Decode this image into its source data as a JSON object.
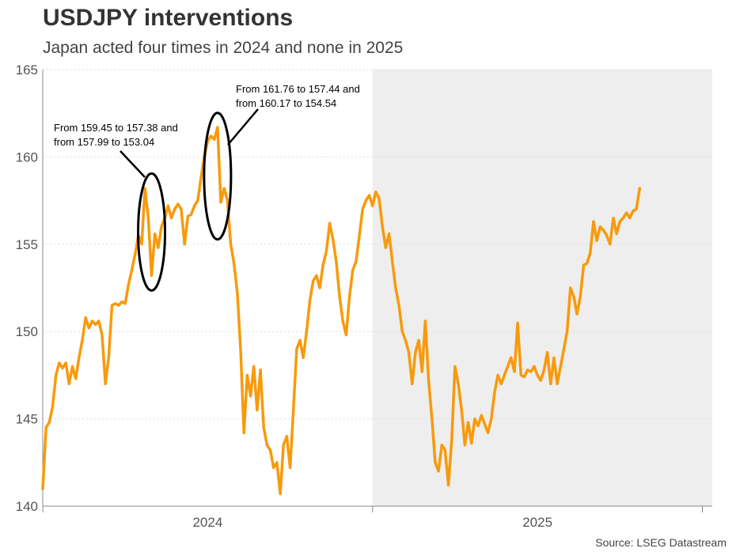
{
  "title": "USDJPY interventions",
  "subtitle": "Japan acted four times in 2024 and none in 2025",
  "source": "Source: LSEG Datastream",
  "colors": {
    "line": "#f89a0c",
    "shade": "#eeeeee",
    "grid": "#dddddd",
    "axis": "#888888"
  },
  "chart_data": {
    "type": "line",
    "title": "USDJPY interventions",
    "subtitle": "Japan acted four times in 2024 and none in 2025",
    "xlabel": "",
    "ylabel": "",
    "xlim": [
      2024.0,
      2026.03
    ],
    "ylim": [
      140,
      165
    ],
    "yticks": [
      140,
      145,
      150,
      155,
      160,
      165
    ],
    "ytick_labels": [
      "140",
      "145",
      "150",
      "155",
      "160",
      "165"
    ],
    "xticks": [
      {
        "label": "2024",
        "value": 2024.5
      },
      {
        "label": "2025",
        "value": 2025.5
      }
    ],
    "year_boundaries": [
      2025.0,
      2026.0
    ],
    "shaded_region": {
      "from": 2025.0,
      "to": 2026.03,
      "label": "2025"
    },
    "grid": "horizontal dotted",
    "series": [
      {
        "name": "USDJPY",
        "points": [
          [
            2024.0,
            141.0
          ],
          [
            2024.01,
            144.5
          ],
          [
            2024.02,
            144.8
          ],
          [
            2024.03,
            145.7
          ],
          [
            2024.04,
            147.5
          ],
          [
            2024.05,
            148.2
          ],
          [
            2024.06,
            147.9
          ],
          [
            2024.07,
            148.2
          ],
          [
            2024.08,
            147.0
          ],
          [
            2024.09,
            148.0
          ],
          [
            2024.1,
            147.3
          ],
          [
            2024.11,
            148.5
          ],
          [
            2024.12,
            149.5
          ],
          [
            2024.13,
            150.8
          ],
          [
            2024.14,
            150.2
          ],
          [
            2024.15,
            150.6
          ],
          [
            2024.16,
            150.4
          ],
          [
            2024.17,
            150.6
          ],
          [
            2024.18,
            149.8
          ],
          [
            2024.19,
            147.0
          ],
          [
            2024.2,
            148.5
          ],
          [
            2024.21,
            151.5
          ],
          [
            2024.22,
            151.6
          ],
          [
            2024.23,
            151.5
          ],
          [
            2024.24,
            151.7
          ],
          [
            2024.25,
            151.6
          ],
          [
            2024.26,
            152.7
          ],
          [
            2024.27,
            153.5
          ],
          [
            2024.28,
            154.4
          ],
          [
            2024.29,
            155.5
          ],
          [
            2024.3,
            155.0
          ],
          [
            2024.31,
            158.2
          ],
          [
            2024.32,
            156.5
          ],
          [
            2024.33,
            153.2
          ],
          [
            2024.34,
            155.6
          ],
          [
            2024.35,
            154.8
          ],
          [
            2024.36,
            156.0
          ],
          [
            2024.37,
            156.5
          ],
          [
            2024.38,
            157.2
          ],
          [
            2024.39,
            156.5
          ],
          [
            2024.4,
            157.0
          ],
          [
            2024.41,
            157.3
          ],
          [
            2024.42,
            157.0
          ],
          [
            2024.43,
            155.0
          ],
          [
            2024.44,
            156.6
          ],
          [
            2024.45,
            156.7
          ],
          [
            2024.46,
            157.2
          ],
          [
            2024.47,
            157.5
          ],
          [
            2024.48,
            158.8
          ],
          [
            2024.49,
            160.0
          ],
          [
            2024.5,
            160.9
          ],
          [
            2024.51,
            161.2
          ],
          [
            2024.52,
            161.0
          ],
          [
            2024.53,
            161.7
          ],
          [
            2024.54,
            157.4
          ],
          [
            2024.55,
            158.2
          ],
          [
            2024.56,
            157.5
          ],
          [
            2024.57,
            155.0
          ],
          [
            2024.58,
            153.9
          ],
          [
            2024.59,
            152.2
          ],
          [
            2024.6,
            149.0
          ],
          [
            2024.61,
            144.2
          ],
          [
            2024.62,
            147.5
          ],
          [
            2024.63,
            146.3
          ],
          [
            2024.64,
            148.0
          ],
          [
            2024.65,
            145.5
          ],
          [
            2024.66,
            147.8
          ],
          [
            2024.67,
            144.5
          ],
          [
            2024.68,
            143.5
          ],
          [
            2024.69,
            143.2
          ],
          [
            2024.7,
            142.2
          ],
          [
            2024.71,
            142.5
          ],
          [
            2024.72,
            140.7
          ],
          [
            2024.73,
            143.5
          ],
          [
            2024.74,
            144.0
          ],
          [
            2024.75,
            142.2
          ],
          [
            2024.76,
            145.5
          ],
          [
            2024.77,
            149.0
          ],
          [
            2024.78,
            149.5
          ],
          [
            2024.79,
            148.5
          ],
          [
            2024.8,
            150.0
          ],
          [
            2024.81,
            151.8
          ],
          [
            2024.82,
            152.9
          ],
          [
            2024.83,
            153.2
          ],
          [
            2024.84,
            152.5
          ],
          [
            2024.85,
            153.8
          ],
          [
            2024.86,
            154.6
          ],
          [
            2024.87,
            156.2
          ],
          [
            2024.88,
            155.3
          ],
          [
            2024.89,
            154.0
          ],
          [
            2024.9,
            152.0
          ],
          [
            2024.91,
            150.6
          ],
          [
            2024.92,
            149.8
          ],
          [
            2024.93,
            152.0
          ],
          [
            2024.94,
            153.5
          ],
          [
            2024.95,
            154.0
          ],
          [
            2024.96,
            155.5
          ],
          [
            2024.97,
            157.0
          ],
          [
            2024.98,
            157.5
          ],
          [
            2024.99,
            157.8
          ],
          [
            2025.0,
            157.2
          ],
          [
            2025.01,
            158.0
          ],
          [
            2025.02,
            157.6
          ],
          [
            2025.03,
            156.0
          ],
          [
            2025.04,
            154.8
          ],
          [
            2025.05,
            155.6
          ],
          [
            2025.06,
            154.0
          ],
          [
            2025.07,
            152.5
          ],
          [
            2025.08,
            151.5
          ],
          [
            2025.09,
            150.0
          ],
          [
            2025.1,
            149.5
          ],
          [
            2025.11,
            148.8
          ],
          [
            2025.12,
            147.0
          ],
          [
            2025.13,
            148.8
          ],
          [
            2025.14,
            149.5
          ],
          [
            2025.15,
            147.7
          ],
          [
            2025.16,
            150.6
          ],
          [
            2025.17,
            147.2
          ],
          [
            2025.18,
            145.0
          ],
          [
            2025.19,
            142.5
          ],
          [
            2025.2,
            142.0
          ],
          [
            2025.21,
            143.5
          ],
          [
            2025.22,
            143.2
          ],
          [
            2025.23,
            141.2
          ],
          [
            2025.24,
            143.8
          ],
          [
            2025.25,
            148.0
          ],
          [
            2025.26,
            147.0
          ],
          [
            2025.27,
            145.5
          ],
          [
            2025.28,
            143.5
          ],
          [
            2025.29,
            144.8
          ],
          [
            2025.3,
            143.6
          ],
          [
            2025.31,
            145.0
          ],
          [
            2025.32,
            144.6
          ],
          [
            2025.33,
            145.2
          ],
          [
            2025.34,
            144.7
          ],
          [
            2025.35,
            144.2
          ],
          [
            2025.36,
            145.0
          ],
          [
            2025.37,
            146.5
          ],
          [
            2025.38,
            147.5
          ],
          [
            2025.39,
            147.0
          ],
          [
            2025.4,
            147.5
          ],
          [
            2025.41,
            148.0
          ],
          [
            2025.42,
            148.5
          ],
          [
            2025.43,
            147.7
          ],
          [
            2025.44,
            150.5
          ],
          [
            2025.45,
            147.5
          ],
          [
            2025.46,
            147.4
          ],
          [
            2025.47,
            147.8
          ],
          [
            2025.48,
            147.7
          ],
          [
            2025.49,
            148.0
          ],
          [
            2025.5,
            147.5
          ],
          [
            2025.51,
            147.2
          ],
          [
            2025.52,
            147.8
          ],
          [
            2025.53,
            148.8
          ],
          [
            2025.54,
            147.0
          ],
          [
            2025.55,
            148.5
          ],
          [
            2025.56,
            147.0
          ],
          [
            2025.57,
            148.0
          ],
          [
            2025.58,
            149.0
          ],
          [
            2025.59,
            150.0
          ],
          [
            2025.6,
            152.5
          ],
          [
            2025.61,
            152.0
          ],
          [
            2025.62,
            151.0
          ],
          [
            2025.63,
            152.0
          ],
          [
            2025.64,
            153.8
          ],
          [
            2025.65,
            153.9
          ],
          [
            2025.66,
            154.5
          ],
          [
            2025.67,
            156.3
          ],
          [
            2025.68,
            155.2
          ],
          [
            2025.69,
            156.0
          ],
          [
            2025.7,
            155.8
          ],
          [
            2025.71,
            155.5
          ],
          [
            2025.72,
            155.0
          ],
          [
            2025.73,
            156.5
          ],
          [
            2025.74,
            155.6
          ],
          [
            2025.75,
            156.3
          ],
          [
            2025.76,
            156.5
          ],
          [
            2025.77,
            156.8
          ],
          [
            2025.78,
            156.5
          ],
          [
            2025.79,
            156.9
          ],
          [
            2025.8,
            157.0
          ],
          [
            2025.81,
            158.2
          ]
        ]
      }
    ],
    "annotations": [
      {
        "lines": [
          "From 159.45 to 157.38 and",
          "from 157.99 to 153.04"
        ],
        "target": {
          "x": 2024.33,
          "y": 155.7
        }
      },
      {
        "lines": [
          "From 161.76 to 157.44 and",
          "from 160.17 to 154.54"
        ],
        "target": {
          "x": 2024.53,
          "y": 158.9
        }
      }
    ]
  }
}
